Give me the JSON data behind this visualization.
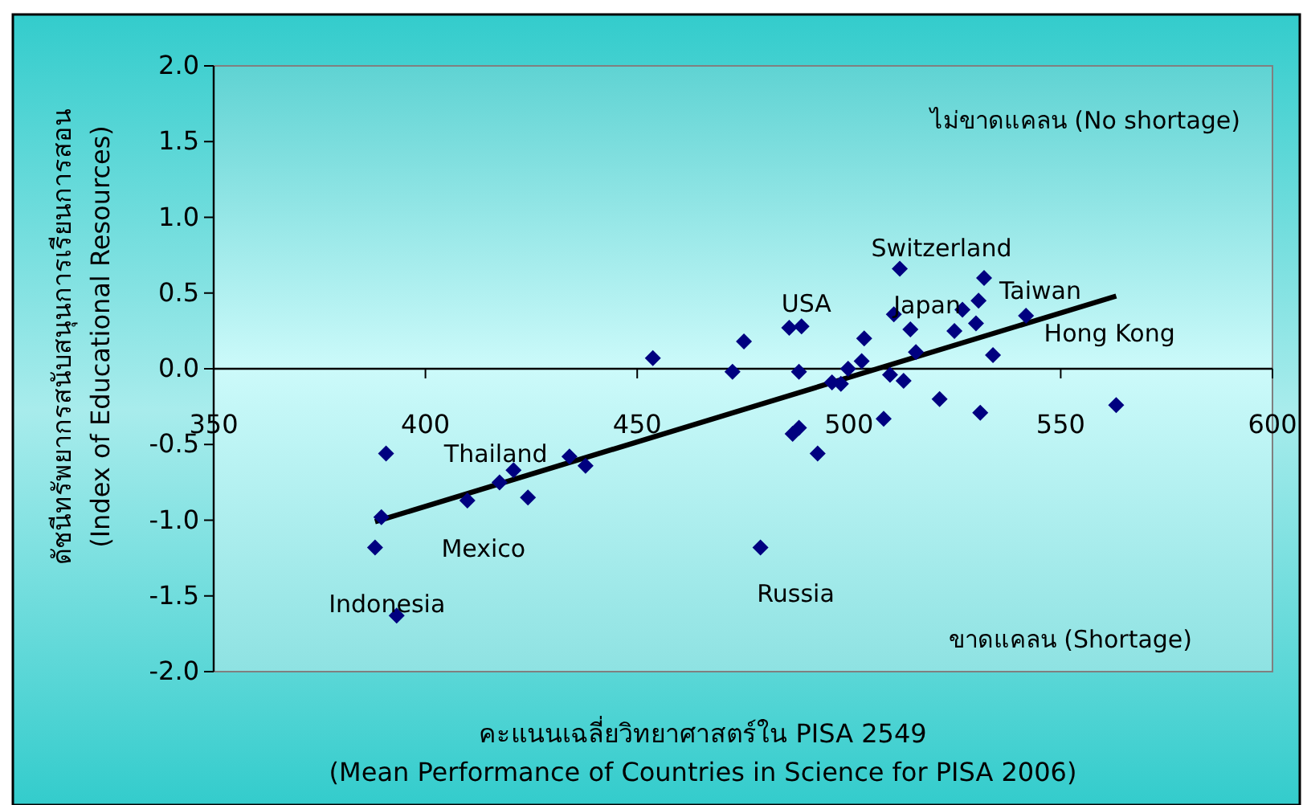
{
  "chart_data": {
    "type": "scatter",
    "xlabel": "คะแนนเฉลี่ยวิทยาศาสตร์ใน PISA 2549\n(Mean Performance of Countries in Science for  PISA 2006)",
    "ylabel": "ดัชนีทรัพยากรสนับสนุนการเรียนการสอน\n(Index of Educational Resources)",
    "xlim": [
      350,
      600
    ],
    "xticks": [
      350,
      400,
      450,
      500,
      550,
      600
    ],
    "ylim": [
      -2,
      2
    ],
    "yticks": [
      {
        "value": 2,
        "label": "2.0"
      },
      {
        "value": 1.5,
        "label": "1.5"
      },
      {
        "value": 1,
        "label": "1.0"
      },
      {
        "value": 0.5,
        "label": "0.5"
      },
      {
        "value": 0,
        "label": "0.0"
      },
      {
        "value": -0.5,
        "label": "-0.5"
      },
      {
        "value": -1,
        "label": "-1.0"
      },
      {
        "value": -1.5,
        "label": "-1.5"
      },
      {
        "value": -2,
        "label": "-2.0"
      }
    ],
    "series": [
      {
        "type": "scatter",
        "color": "#000080",
        "marker": "diamond",
        "x": [
          390.7,
          389.6,
          388.1,
          393.2,
          409.9,
          417.5,
          420.8,
          424.2,
          434.0,
          437.8,
          453.7,
          472.5,
          475.2,
          485.9,
          488.8,
          488.2,
          486.7,
          488.2,
          492.6,
          479.1,
          496.0,
          498.1,
          499.8,
          503.0,
          503.6,
          508.2,
          509.7,
          512.9,
          512.0,
          510.6,
          514.5,
          515.8,
          521.4,
          524.9,
          526.8,
          530.6,
          531.9,
          530.0,
          534.0,
          531.0,
          541.8,
          563.1
        ],
        "values": [
          -0.56,
          -0.98,
          -1.18,
          -1.63,
          -0.87,
          -0.75,
          -0.67,
          -0.85,
          -0.58,
          -0.64,
          0.07,
          -0.02,
          0.18,
          0.27,
          0.28,
          -0.02,
          -0.43,
          -0.39,
          -0.56,
          -1.18,
          -0.09,
          -0.1,
          0.0,
          0.05,
          0.2,
          -0.33,
          -0.04,
          -0.08,
          0.66,
          0.36,
          0.26,
          0.11,
          -0.2,
          0.25,
          0.39,
          0.45,
          0.6,
          0.3,
          0.09,
          -0.29,
          0.35,
          -0.24
        ]
      },
      {
        "type": "line",
        "color": "#000000",
        "x": [
          388.1,
          563.1
        ],
        "values": [
          -1.01,
          0.48
        ]
      }
    ],
    "annotations": [
      "ไม่ขาดแคลน (No shortage)",
      "ขาดแคลน (Shortage)",
      {
        "text": "Thailand",
        "x": 420.8,
        "y": -0.67
      },
      {
        "text": "Mexico",
        "x": 409.9,
        "y": -0.87
      },
      {
        "text": "Indonesia",
        "x": 393.2,
        "y": -1.63
      },
      {
        "text": "Russia",
        "x": 479.1,
        "y": -1.18
      },
      {
        "text": "USA",
        "x": 488.8,
        "y": 0.28
      },
      {
        "text": "Switzerland",
        "x": 512.0,
        "y": 0.66
      },
      {
        "text": "Japan",
        "x": 530.6,
        "y": 0.45
      },
      {
        "text": "Taiwan",
        "x": 531.9,
        "y": 0.6
      },
      {
        "text": "Hong Kong",
        "x": 541.8,
        "y": 0.35
      }
    ]
  }
}
